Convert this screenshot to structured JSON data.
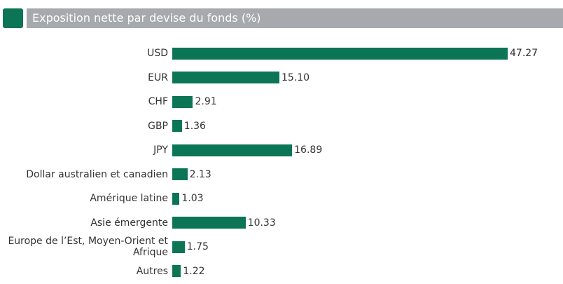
{
  "chart_data": {
    "type": "bar",
    "orientation": "horizontal",
    "title": "Exposition nette par devise du fonds (%)",
    "categories": [
      "USD",
      "EUR",
      "CHF",
      "GBP",
      "JPY",
      "Dollar australien et canadien",
      "Amérique latine",
      "Asie émergente",
      "Europe de l’Est, Moyen-Orient et Afrique",
      "Autres"
    ],
    "values": [
      47.27,
      15.1,
      2.91,
      1.36,
      16.89,
      2.13,
      1.03,
      10.33,
      1.75,
      1.22
    ],
    "value_labels": [
      "47.27",
      "15.10",
      "2.91",
      "1.36",
      "16.89",
      "2.13",
      "1.03",
      "10.33",
      "1.75",
      "1.22"
    ],
    "color": "#0b7556"
  }
}
